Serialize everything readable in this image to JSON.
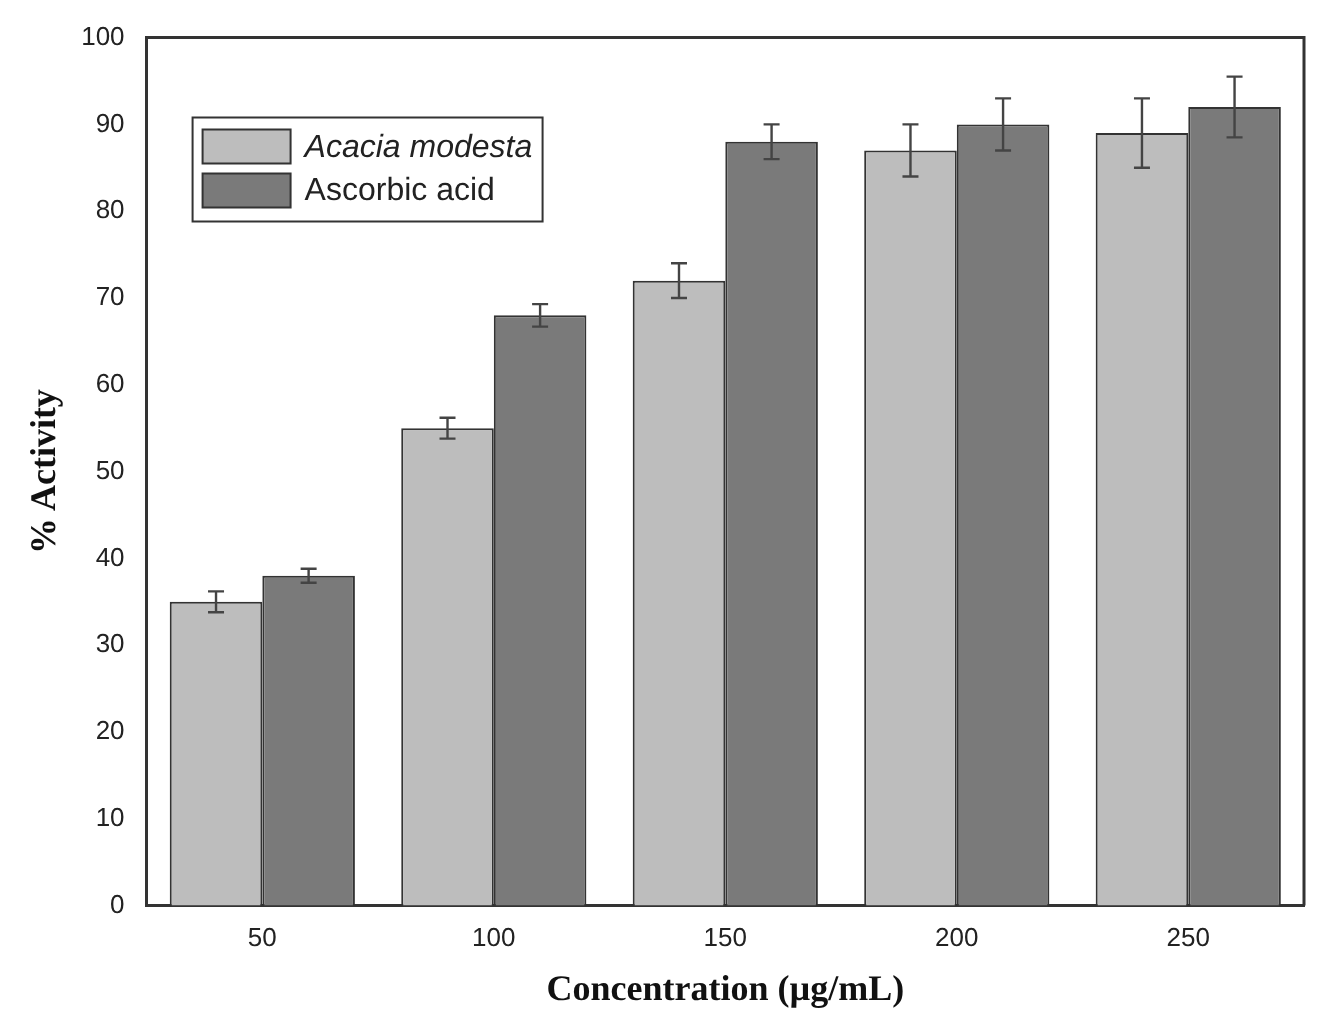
{
  "chart_data": {
    "type": "bar",
    "xlabel": "Concentration (µg/mL)",
    "ylabel": "% Activity",
    "categories": [
      "50",
      "100",
      "150",
      "200",
      "250"
    ],
    "series": [
      {
        "name": "Acacia modesta",
        "color": "#bdbdbd",
        "values": [
          35,
          55,
          72,
          87,
          89
        ],
        "errors": [
          1.2,
          1.2,
          2,
          3,
          4
        ]
      },
      {
        "name": "Ascorbic acid",
        "color": "#7a7a7a",
        "values": [
          38,
          68,
          88,
          90,
          92
        ],
        "errors": [
          0.8,
          1.3,
          2,
          3,
          3.5
        ]
      }
    ],
    "ylim": [
      0,
      100
    ],
    "yticks": [
      0,
      10,
      20,
      30,
      40,
      50,
      60,
      70,
      80,
      90,
      100
    ],
    "grid": false,
    "legend": "top left"
  }
}
